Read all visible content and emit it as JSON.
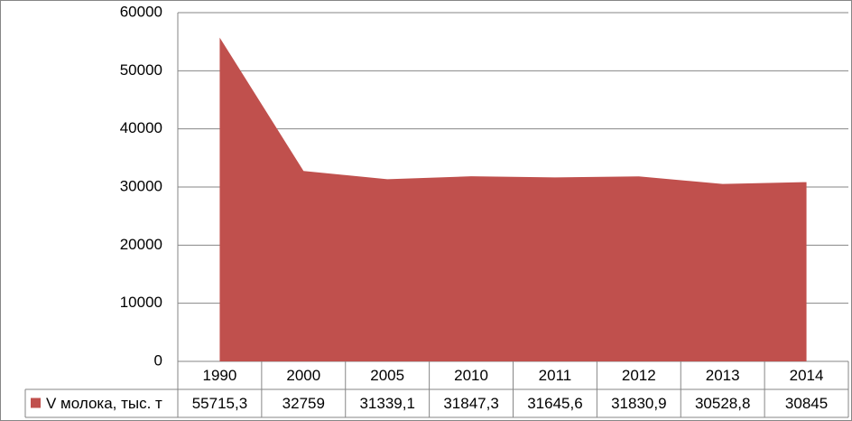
{
  "chart_data": {
    "type": "area",
    "categories": [
      "1990",
      "2000",
      "2005",
      "2010",
      "2011",
      "2012",
      "2013",
      "2014"
    ],
    "series": [
      {
        "name": "V молока, тыс. т",
        "color": "#c0504d",
        "values": [
          55715.3,
          32759,
          31339.1,
          31847.3,
          31645.6,
          31830.9,
          30528.8,
          30845
        ],
        "value_labels": [
          "55715,3",
          "32759",
          "31339,1",
          "31847,3",
          "31645,6",
          "31830,9",
          "30528,8",
          "30845"
        ]
      }
    ],
    "ylim": [
      0,
      60000
    ],
    "yticks": [
      0,
      10000,
      20000,
      30000,
      40000,
      50000,
      60000
    ],
    "grid": true,
    "legend": "data-table"
  }
}
